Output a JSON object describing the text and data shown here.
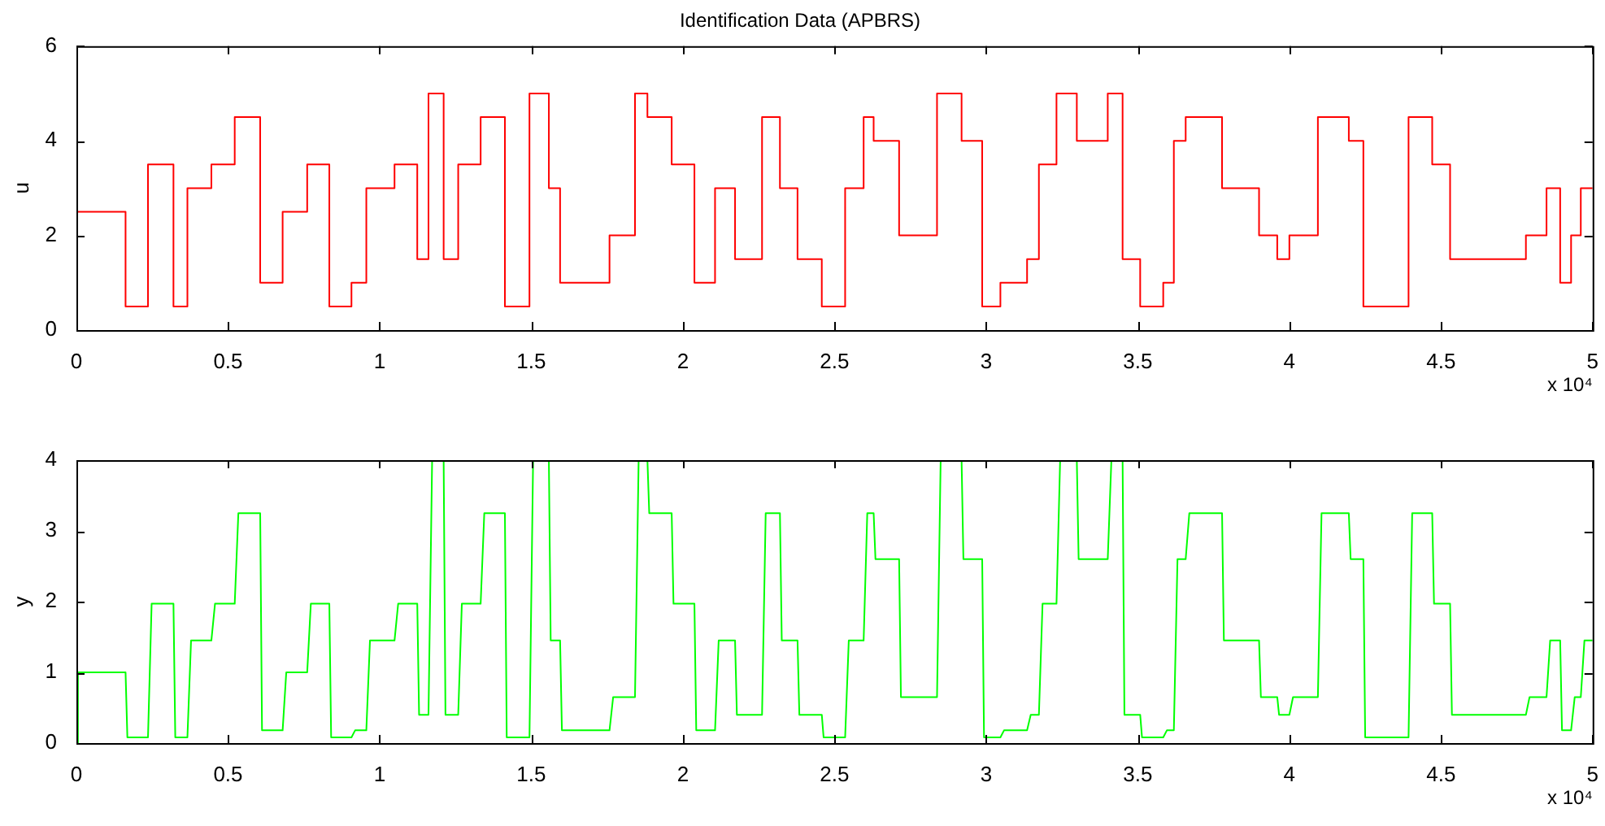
{
  "chart_data": [
    {
      "type": "step",
      "title": "Identification Data (APBRS)",
      "ylabel": "u",
      "color": "#ff0000",
      "legend": false,
      "x": [
        0,
        0.162,
        0.236,
        0.32,
        0.366,
        0.445,
        0.522,
        0.606,
        0.68,
        0.761,
        0.834,
        0.907,
        0.956,
        1.049,
        1.124,
        1.161,
        1.211,
        1.259,
        1.333,
        1.413,
        1.494,
        1.558,
        1.595,
        1.758,
        1.842,
        1.883,
        1.963,
        2.038,
        2.106,
        2.172,
        2.261,
        2.32,
        2.378,
        2.458,
        2.535,
        2.596,
        2.629,
        2.713,
        2.838,
        2.919,
        2.987,
        3.047,
        3.135,
        3.174,
        3.232,
        3.299,
        3.401,
        3.45,
        3.508,
        3.584,
        3.619,
        3.658,
        3.778,
        3.9,
        3.96,
        4.0,
        4.094,
        4.196,
        4.244,
        4.393,
        4.471,
        4.53,
        4.78,
        4.848,
        4.893,
        4.929,
        4.961,
        5
      ],
      "values": [
        2.5,
        0.5,
        3.5,
        0.5,
        3,
        3.5,
        4.5,
        1,
        2.5,
        3.5,
        0.5,
        1,
        3,
        3.5,
        1.5,
        5,
        1.5,
        3.5,
        4.5,
        0.5,
        5,
        3,
        1,
        2,
        5,
        4.5,
        3.5,
        1,
        3,
        1.5,
        4.5,
        3,
        1.5,
        0.5,
        3,
        4.5,
        4,
        2,
        5,
        4,
        0.5,
        1,
        1.5,
        3.5,
        5,
        4,
        5,
        1.5,
        0.5,
        1,
        4,
        4.5,
        3,
        2,
        1.5,
        2,
        4.5,
        4,
        0.5,
        4.5,
        3.5,
        1.5,
        2,
        3,
        1,
        2,
        3,
        3
      ],
      "xlim": [
        0,
        5
      ],
      "xticks": [
        0,
        0.5,
        1,
        1.5,
        2,
        2.5,
        3,
        3.5,
        4,
        4.5,
        5
      ],
      "ylim": [
        0,
        6
      ],
      "yticks": [
        0,
        2,
        4,
        6
      ],
      "annotations": [
        "x 10⁴"
      ]
    },
    {
      "type": "line",
      "ylabel": "y",
      "color": "#00ff00",
      "legend": false,
      "x": [
        0,
        0.005,
        0.162,
        0.168,
        0.236,
        0.248,
        0.32,
        0.326,
        0.366,
        0.378,
        0.445,
        0.457,
        0.522,
        0.534,
        0.606,
        0.612,
        0.68,
        0.692,
        0.761,
        0.773,
        0.834,
        0.84,
        0.907,
        0.919,
        0.956,
        0.968,
        1.049,
        1.061,
        1.124,
        1.13,
        1.161,
        1.173,
        1.211,
        1.217,
        1.259,
        1.271,
        1.333,
        1.345,
        1.413,
        1.419,
        1.494,
        1.506,
        1.558,
        1.564,
        1.595,
        1.601,
        1.758,
        1.77,
        1.842,
        1.854,
        1.883,
        1.889,
        1.963,
        1.969,
        2.038,
        2.044,
        2.106,
        2.118,
        2.172,
        2.178,
        2.261,
        2.273,
        2.32,
        2.326,
        2.378,
        2.384,
        2.458,
        2.464,
        2.535,
        2.547,
        2.596,
        2.608,
        2.629,
        2.635,
        2.713,
        2.719,
        2.838,
        2.85,
        2.919,
        2.925,
        2.987,
        2.993,
        3.047,
        3.059,
        3.135,
        3.147,
        3.174,
        3.186,
        3.232,
        3.244,
        3.299,
        3.305,
        3.401,
        3.413,
        3.45,
        3.456,
        3.508,
        3.514,
        3.584,
        3.596,
        3.619,
        3.631,
        3.658,
        3.67,
        3.778,
        3.784,
        3.9,
        3.906,
        3.96,
        3.966,
        4.0,
        4.012,
        4.094,
        4.106,
        4.196,
        4.202,
        4.244,
        4.25,
        4.393,
        4.405,
        4.471,
        4.477,
        4.53,
        4.536,
        4.78,
        4.792,
        4.848,
        4.86,
        4.893,
        4.899,
        4.929,
        4.941,
        4.961,
        4.973,
        5
      ],
      "values": [
        0,
        1,
        1,
        0.08,
        0.08,
        1.97,
        1.97,
        0.08,
        0.08,
        1.45,
        1.45,
        1.97,
        1.97,
        3.25,
        3.25,
        0.18,
        0.18,
        1,
        1,
        1.97,
        1.97,
        0.08,
        0.08,
        0.18,
        0.18,
        1.45,
        1.45,
        1.97,
        1.97,
        0.4,
        0.4,
        4,
        4,
        0.4,
        0.4,
        1.97,
        1.97,
        3.25,
        3.25,
        0.08,
        0.08,
        4,
        4,
        1.45,
        1.45,
        0.18,
        0.18,
        0.65,
        0.65,
        4,
        4,
        3.25,
        3.25,
        1.97,
        1.97,
        0.18,
        0.18,
        1.45,
        1.45,
        0.4,
        0.4,
        3.25,
        3.25,
        1.45,
        1.45,
        0.4,
        0.4,
        0.08,
        0.08,
        1.45,
        1.45,
        3.25,
        3.25,
        2.6,
        2.6,
        0.65,
        0.65,
        4,
        4,
        2.6,
        2.6,
        0.08,
        0.08,
        0.18,
        0.18,
        0.4,
        0.4,
        1.97,
        1.97,
        4,
        4,
        2.6,
        2.6,
        4,
        4,
        0.4,
        0.4,
        0.08,
        0.08,
        0.18,
        0.18,
        2.6,
        2.6,
        3.25,
        3.25,
        1.45,
        1.45,
        0.65,
        0.65,
        0.4,
        0.4,
        0.65,
        0.65,
        3.25,
        3.25,
        2.6,
        2.6,
        0.08,
        0.08,
        3.25,
        3.25,
        1.97,
        1.97,
        0.4,
        0.4,
        0.65,
        0.65,
        1.45,
        1.45,
        0.18,
        0.18,
        0.65,
        0.65,
        1.45,
        1.45
      ],
      "xlim": [
        0,
        5
      ],
      "xticks": [
        0,
        0.5,
        1,
        1.5,
        2,
        2.5,
        3,
        3.5,
        4,
        4.5,
        5
      ],
      "ylim": [
        0,
        4
      ],
      "yticks": [
        0,
        1,
        2,
        3,
        4
      ],
      "annotations": [
        "x 10⁴"
      ]
    }
  ]
}
